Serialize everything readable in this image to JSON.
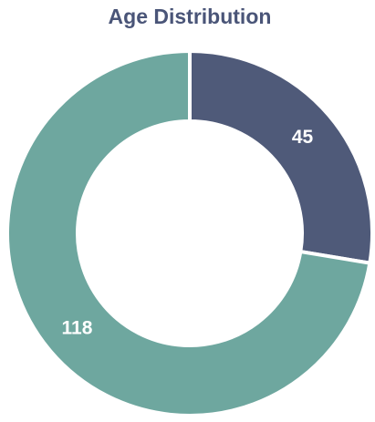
{
  "chart_data": {
    "type": "donut",
    "title": "Age Distribution",
    "values": [
      45,
      118
    ],
    "colors": [
      "#4f5a79",
      "#6ea79f"
    ]
  }
}
